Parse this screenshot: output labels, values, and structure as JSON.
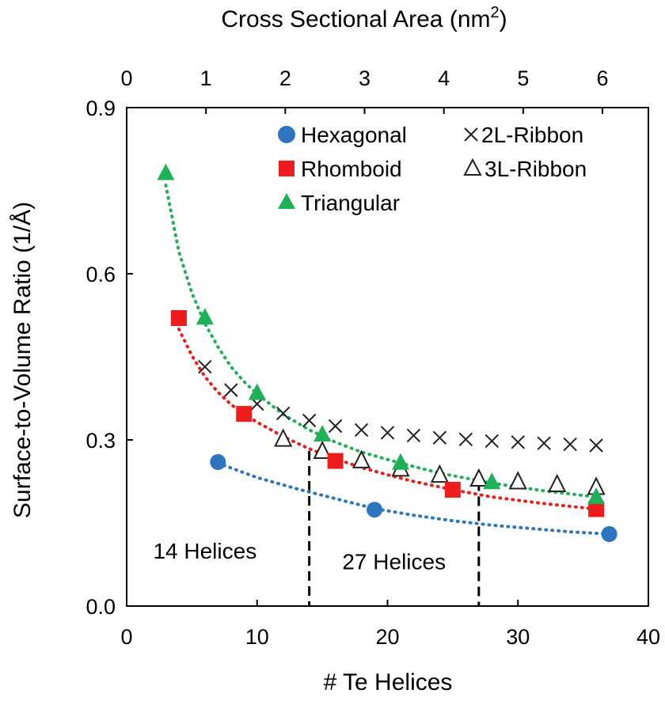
{
  "chart_data": {
    "type": "scatter",
    "title": "",
    "xlabel": "# Te Helices",
    "ylabel": "Surface-to-Volume Ratio (1/Å)",
    "xlim": [
      0,
      40
    ],
    "ylim": [
      0,
      0.9
    ],
    "x_ticks": [
      "0",
      "10",
      "20",
      "30",
      "40"
    ],
    "y_ticks": [
      "0.0",
      "0.3",
      "0.6",
      "0.9"
    ],
    "x2label_main": "Cross Sectional Area (nm",
    "x2label_sup": "2",
    "x2label_close": ")",
    "x2_ticks": [
      "0",
      "1",
      "2",
      "3",
      "4",
      "5",
      "6"
    ],
    "x2_tick_positions": [
      0,
      6.08,
      12.16,
      18.24,
      24.32,
      30.4,
      36.48
    ],
    "legend_position": "top-right",
    "series": [
      {
        "name": "Hexagonal",
        "marker": "circle",
        "color": "#2E75C0",
        "x": [
          7,
          19,
          37
        ],
        "y": [
          0.26,
          0.174,
          0.13
        ],
        "trend": {
          "color": "#2E75C0",
          "x": [
            7,
            10,
            13,
            16,
            19,
            22,
            25,
            28,
            31,
            34,
            37
          ],
          "y": [
            0.258,
            0.232,
            0.212,
            0.194,
            0.176,
            0.164,
            0.154,
            0.146,
            0.14,
            0.134,
            0.13
          ]
        }
      },
      {
        "name": "Rhomboid",
        "marker": "square",
        "color": "#EE1C1C",
        "x": [
          4,
          9,
          16,
          25,
          36
        ],
        "y": [
          0.52,
          0.347,
          0.262,
          0.21,
          0.175
        ],
        "trend": {
          "color": "#EE1C1C",
          "x": [
            4,
            5,
            6,
            7,
            8,
            9,
            10,
            12,
            14,
            16,
            18,
            20,
            22,
            25,
            28,
            32,
            36
          ],
          "y": [
            0.5,
            0.452,
            0.414,
            0.386,
            0.364,
            0.346,
            0.332,
            0.306,
            0.284,
            0.266,
            0.25,
            0.237,
            0.225,
            0.21,
            0.197,
            0.185,
            0.175
          ]
        }
      },
      {
        "name": "Triangular",
        "marker": "triangle",
        "color": "#1FB05A",
        "x": [
          3,
          6,
          10,
          15,
          21,
          28,
          36
        ],
        "y": [
          0.782,
          0.521,
          0.385,
          0.31,
          0.259,
          0.224,
          0.197
        ],
        "trend": {
          "color": "#1FB05A",
          "x": [
            3,
            4,
            5,
            6,
            7,
            8,
            9,
            10,
            12,
            14,
            16,
            18,
            21,
            24,
            28,
            32,
            36
          ],
          "y": [
            0.76,
            0.64,
            0.565,
            0.51,
            0.468,
            0.432,
            0.405,
            0.383,
            0.346,
            0.318,
            0.296,
            0.278,
            0.258,
            0.24,
            0.222,
            0.208,
            0.197
          ]
        }
      },
      {
        "name": "2L-Ribbon",
        "marker": "x",
        "color": "#222222",
        "x": [
          6,
          8,
          10,
          12,
          14,
          16,
          18,
          20,
          22,
          24,
          26,
          28,
          30,
          32,
          34,
          36
        ],
        "y": [
          0.432,
          0.39,
          0.365,
          0.348,
          0.335,
          0.325,
          0.318,
          0.313,
          0.308,
          0.304,
          0.301,
          0.298,
          0.296,
          0.294,
          0.292,
          0.29
        ]
      },
      {
        "name": "3L-Ribbon",
        "marker": "triangle-open",
        "color": "#222222",
        "x": [
          12,
          15,
          18,
          21,
          24,
          27,
          30,
          33,
          36
        ],
        "y": [
          0.302,
          0.28,
          0.263,
          0.248,
          0.237,
          0.23,
          0.225,
          0.22,
          0.215
        ]
      }
    ],
    "vlines": [
      {
        "x": 14,
        "y_top": 0.28
      },
      {
        "x": 27,
        "y_top": 0.225
      }
    ],
    "annotations": [
      {
        "text": "14 Helices",
        "x": 6,
        "y": 0.1
      },
      {
        "text": "27 Helices",
        "x": 20.5,
        "y": 0.081
      }
    ]
  }
}
